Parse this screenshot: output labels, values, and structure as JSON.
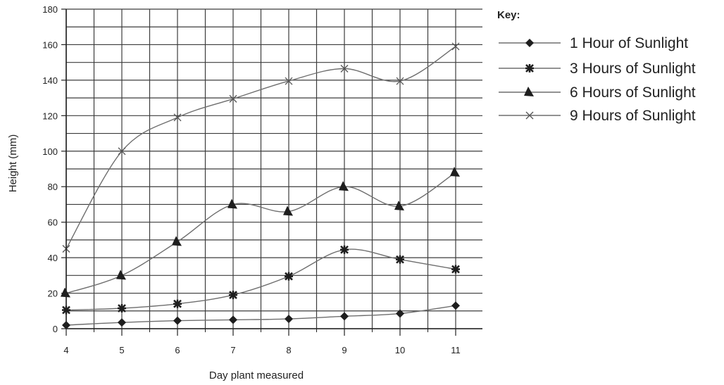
{
  "chart_data": {
    "type": "line",
    "title": "",
    "xlabel": "Day plant measured",
    "ylabel": "Height (mm)",
    "x": [
      4,
      5,
      6,
      7,
      8,
      9,
      10,
      11
    ],
    "x_tick_labels": [
      "4",
      "5",
      "6",
      "7",
      "8",
      "9",
      "10",
      "11"
    ],
    "y_tick_labels": [
      "0",
      "20",
      "40",
      "60",
      "80",
      "100",
      "120",
      "140",
      "160",
      "180"
    ],
    "ylim": [
      0,
      180
    ],
    "xlim": [
      4,
      11.5
    ],
    "grid": true,
    "legend_title": "Key:",
    "legend_position": "right",
    "series": [
      {
        "name": "1 Hour of Sunlight",
        "marker": "diamond",
        "values": [
          2,
          3.5,
          4.5,
          5,
          5.5,
          7,
          8.5,
          13
        ]
      },
      {
        "name": "3 Hours of Sunlight",
        "marker": "star",
        "values": [
          10.5,
          11.5,
          14,
          19,
          29.5,
          44.5,
          39,
          33.5
        ]
      },
      {
        "name": "6 Hours of Sunlight",
        "marker": "triangle",
        "values": [
          20,
          30,
          49,
          70,
          66,
          80,
          69,
          88
        ]
      },
      {
        "name": "9 Hours of Sunlight",
        "marker": "x",
        "values": [
          45,
          100,
          119,
          129.5,
          139.5,
          146.5,
          139.5,
          159
        ]
      }
    ],
    "colors": {
      "line": "#6e6e6e",
      "marker": "#1e1e1e",
      "grid": "#3c3c3c"
    }
  }
}
